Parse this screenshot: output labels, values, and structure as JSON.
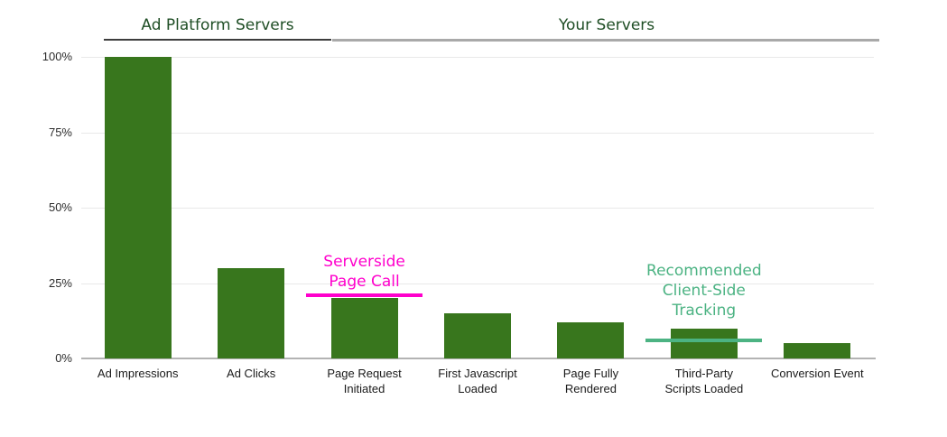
{
  "chart_data": {
    "type": "bar",
    "title": "",
    "categories": [
      "Ad Impressions",
      "Ad Clicks",
      "Page Request\nInitiated",
      "First Javascript\nLoaded",
      "Page Fully\nRendered",
      "Third-Party\nScripts Loaded",
      "Conversion Event"
    ],
    "values": [
      100,
      30,
      20,
      15,
      12,
      10,
      5
    ],
    "unit": "%",
    "xlabel": "",
    "ylabel": "",
    "ylim": [
      0,
      100
    ],
    "yticks": [
      0,
      25,
      50,
      75,
      100
    ],
    "ytick_labels": [
      "0%",
      "25%",
      "50%",
      "75%",
      "100%"
    ],
    "grid": true,
    "legend": "none",
    "bar_color": "#38761d"
  },
  "group_headers": [
    {
      "label": "Ad Platform Servers",
      "text_color": "#1f4e25",
      "line_color": "#3d3d3d",
      "bars_covered": [
        0,
        1
      ]
    },
    {
      "label": "Your Servers",
      "text_color": "#1f4e25",
      "line_color": "#a9a9a9",
      "bars_covered": [
        2,
        6
      ]
    }
  ],
  "annotations": [
    {
      "label": "Serverside\nPage Call",
      "color": "#ff00cc",
      "bar_index": 2,
      "line_value_pct": 21
    },
    {
      "label": "Recommended\nClient-Side\nTracking",
      "color": "#4cb383",
      "bar_index": 5,
      "line_value_pct": 6
    }
  ],
  "colors": {
    "background": "#ffffff",
    "gridline": "#e9e9e9",
    "axis_baseline": "#b3b3b3",
    "axis_text": "#2b2b2b"
  }
}
